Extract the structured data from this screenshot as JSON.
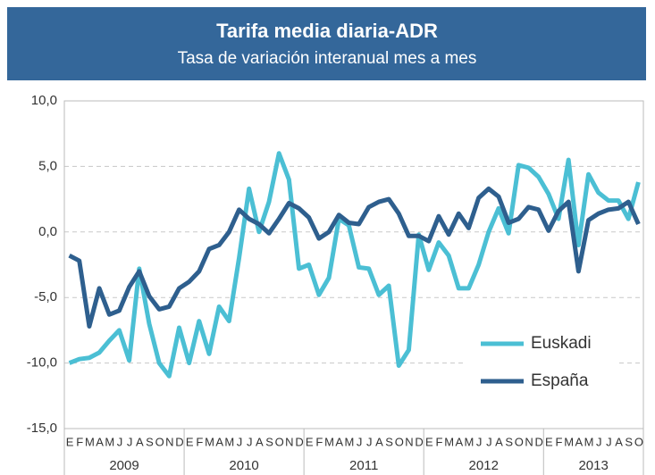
{
  "chart_data": {
    "type": "line",
    "title": "Tarifa media diaria-ADR",
    "subtitle": "Tasa de variación interanual mes a mes",
    "categories": [
      "E",
      "F",
      "M",
      "A",
      "M",
      "J",
      "J",
      "A",
      "S",
      "O",
      "N",
      "D",
      "E",
      "F",
      "M",
      "A",
      "M",
      "J",
      "J",
      "A",
      "S",
      "O",
      "N",
      "D",
      "E",
      "F",
      "M",
      "A",
      "M",
      "J",
      "J",
      "A",
      "S",
      "O",
      "N",
      "D",
      "E",
      "F",
      "M",
      "A",
      "M",
      "J",
      "J",
      "A",
      "S",
      "O",
      "N",
      "D",
      "E",
      "F",
      "M",
      "A",
      "M",
      "J",
      "J",
      "A",
      "S",
      "O"
    ],
    "years": [
      "2009",
      "2010",
      "2011",
      "2012",
      "2013"
    ],
    "series": [
      {
        "name": "Euskadi",
        "color": "#4bbfd4",
        "values": [
          -10.0,
          -9.7,
          -9.6,
          -9.2,
          -8.3,
          -7.5,
          -9.8,
          -2.8,
          -7.0,
          -10.0,
          -11.0,
          -7.3,
          -10.0,
          -6.8,
          -9.3,
          -5.7,
          -6.8,
          -2.0,
          3.3,
          0.0,
          2.3,
          6.0,
          4.0,
          -2.8,
          -2.5,
          -4.8,
          -3.5,
          1.0,
          0.5,
          -2.7,
          -2.8,
          -4.8,
          -4.1,
          -10.2,
          -9.0,
          -0.2,
          -2.9,
          -0.8,
          -1.8,
          -4.3,
          -4.3,
          -2.5,
          0.0,
          1.8,
          -0.1,
          5.1,
          4.9,
          4.2,
          2.9,
          1.0,
          5.5,
          -1.0,
          4.4,
          3.0,
          2.4,
          2.4,
          1.0,
          3.8
        ]
      },
      {
        "name": "España",
        "color": "#2e5f8e",
        "values": [
          -1.8,
          -2.2,
          -7.2,
          -4.3,
          -6.3,
          -6.0,
          -4.2,
          -3.0,
          -4.9,
          -5.9,
          -5.7,
          -4.3,
          -3.8,
          -3.0,
          -1.3,
          -1.0,
          0.0,
          1.7,
          1.0,
          0.6,
          -0.1,
          1.0,
          2.2,
          1.8,
          1.1,
          -0.5,
          0.0,
          1.3,
          0.7,
          0.6,
          1.9,
          2.3,
          2.5,
          1.4,
          -0.3,
          -0.3,
          -0.7,
          1.2,
          -0.2,
          1.4,
          0.3,
          2.6,
          3.3,
          2.7,
          0.7,
          1.0,
          1.9,
          1.7,
          0.1,
          1.6,
          2.3,
          -3.0,
          0.9,
          1.4,
          1.7,
          1.8,
          2.3,
          0.6
        ]
      }
    ],
    "ylim": [
      -15,
      10
    ],
    "yticks": [
      {
        "value": -15,
        "label": "-15,0"
      },
      {
        "value": -10,
        "label": "-10,0"
      },
      {
        "value": -5,
        "label": "-5,0"
      },
      {
        "value": 0,
        "label": "0,0"
      },
      {
        "value": 5,
        "label": "5,0"
      },
      {
        "value": 10,
        "label": "10,0"
      }
    ],
    "grid": true,
    "legend_position": "right"
  }
}
